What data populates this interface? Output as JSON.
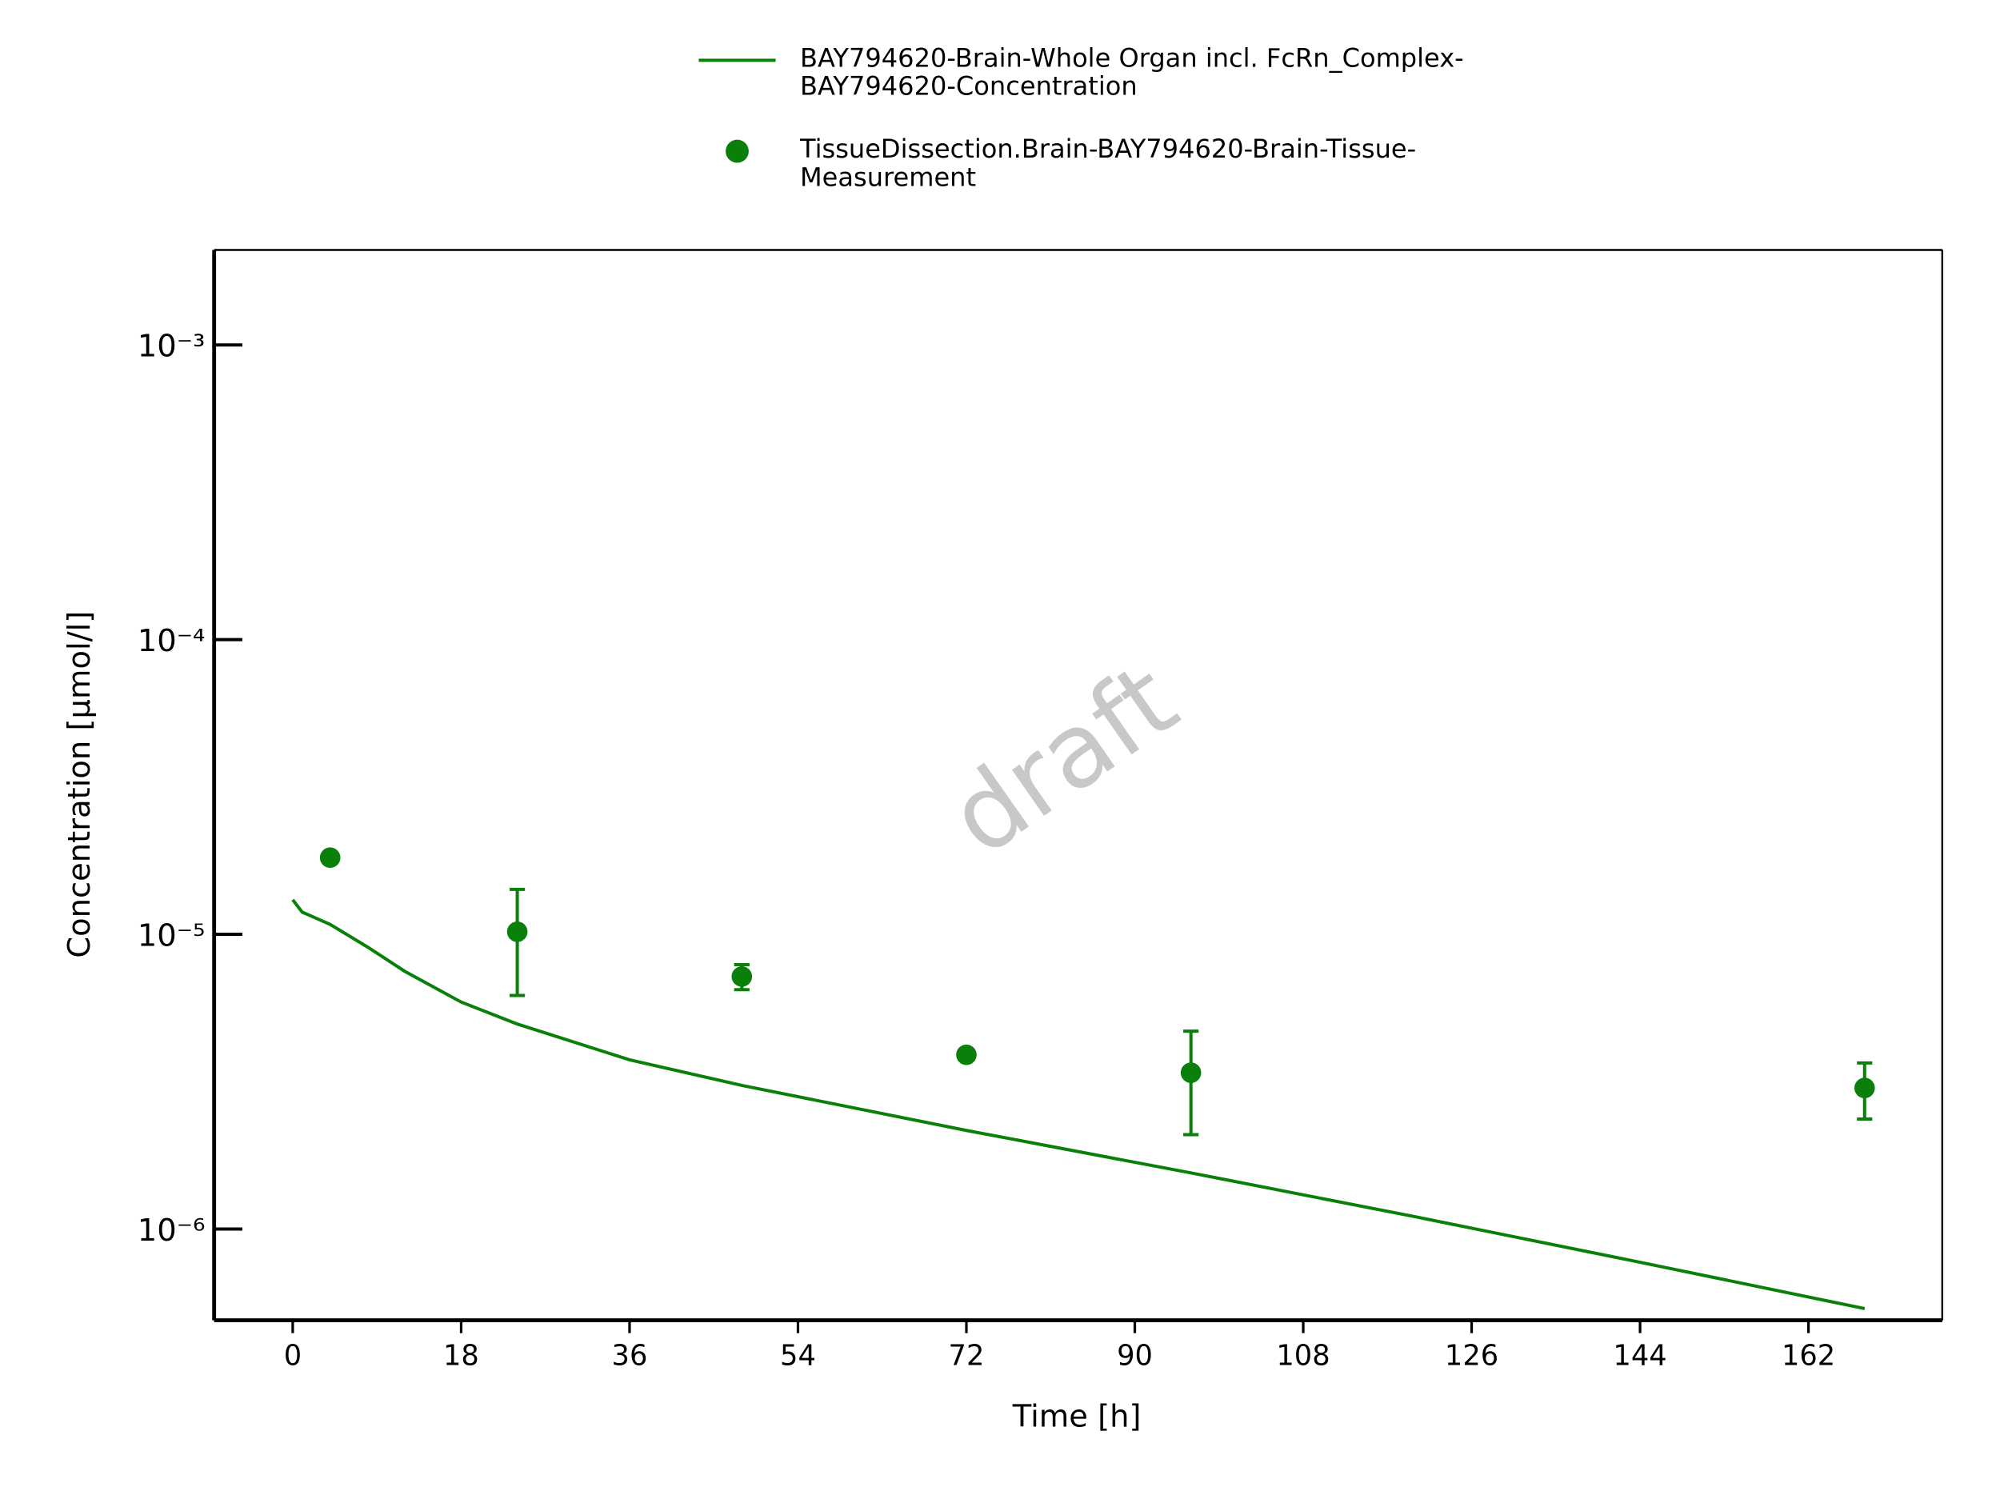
{
  "chart_data": {
    "type": "line",
    "xlabel": "Time [h]",
    "ylabel": "Concentration [µmol/l]",
    "watermark": "draft",
    "log_y": true,
    "xlim": [
      -8.4,
      176.3
    ],
    "xticks": [
      0,
      18,
      36,
      54,
      72,
      90,
      108,
      126,
      144,
      162
    ],
    "ylim": [
      4.9e-07,
      0.0021
    ],
    "yticks": [
      {
        "value": 1e-06,
        "label": "10⁻⁶"
      },
      {
        "value": 1e-05,
        "label": "10⁻⁵"
      },
      {
        "value": 0.0001,
        "label": "10⁻⁴"
      },
      {
        "value": 0.001,
        "label": "10⁻³"
      }
    ],
    "series": [
      {
        "name": "BAY794620-Brain-Whole Organ incl. FcRn_Complex-\nBAY794620-Concentration",
        "color": "#0a800a",
        "style": "line",
        "x": [
          0,
          1,
          4,
          8,
          12,
          18,
          24,
          36,
          48,
          72,
          96,
          120,
          144,
          168
        ],
        "values": [
          1.31e-05,
          1.19e-05,
          1.08e-05,
          9.05e-06,
          7.48e-06,
          5.89e-06,
          4.96e-06,
          3.75e-06,
          3.07e-06,
          2.16e-06,
          1.55e-06,
          1.1e-06,
          7.71e-07,
          5.37e-07
        ]
      },
      {
        "name": "TissueDissection.Brain-BAY794620-Brain-Tissue-\nMeasurement",
        "color": "#0a800a",
        "style": "points",
        "x": [
          4,
          24,
          48,
          72,
          96,
          168
        ],
        "values": [
          1.82e-05,
          1.02e-05,
          7.19e-06,
          3.9e-06,
          3.39e-06,
          3.01e-06
        ],
        "errors": [
          null,
          4e-06,
          7e-07,
          null,
          1.3e-06,
          6.5e-07
        ]
      }
    ]
  }
}
